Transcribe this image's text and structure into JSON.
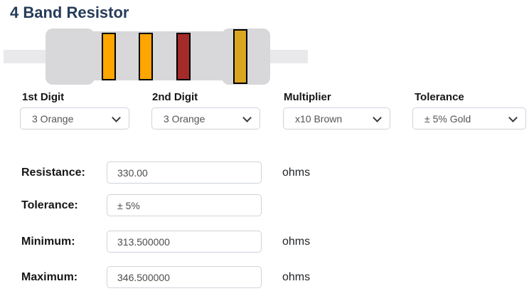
{
  "page": {
    "title": "4 Band Resistor"
  },
  "resistor": {
    "body_color": "#d8d8da",
    "lead_color": "#e9e9eb",
    "bands": [
      {
        "name": "orange",
        "color": "#FFA500"
      },
      {
        "name": "orange",
        "color": "#FFA500"
      },
      {
        "name": "brown",
        "color": "#A52A2A"
      },
      {
        "name": "gold",
        "color": "#DAA520"
      }
    ]
  },
  "selectors": [
    {
      "label": "1st Digit",
      "value": "3 Orange"
    },
    {
      "label": "2nd Digit",
      "value": "3 Orange"
    },
    {
      "label": "Multiplier",
      "value": "x10 Brown"
    },
    {
      "label": "Tolerance",
      "value": "± 5% Gold"
    }
  ],
  "results": [
    {
      "label": "Resistance:",
      "value": "330.00",
      "unit": "ohms"
    },
    {
      "label": "Tolerance:",
      "value": "± 5%",
      "unit": ""
    },
    {
      "label": "Minimum:",
      "value": "313.500000",
      "unit": "ohms"
    },
    {
      "label": "Maximum:",
      "value": "346.500000",
      "unit": "ohms"
    }
  ]
}
